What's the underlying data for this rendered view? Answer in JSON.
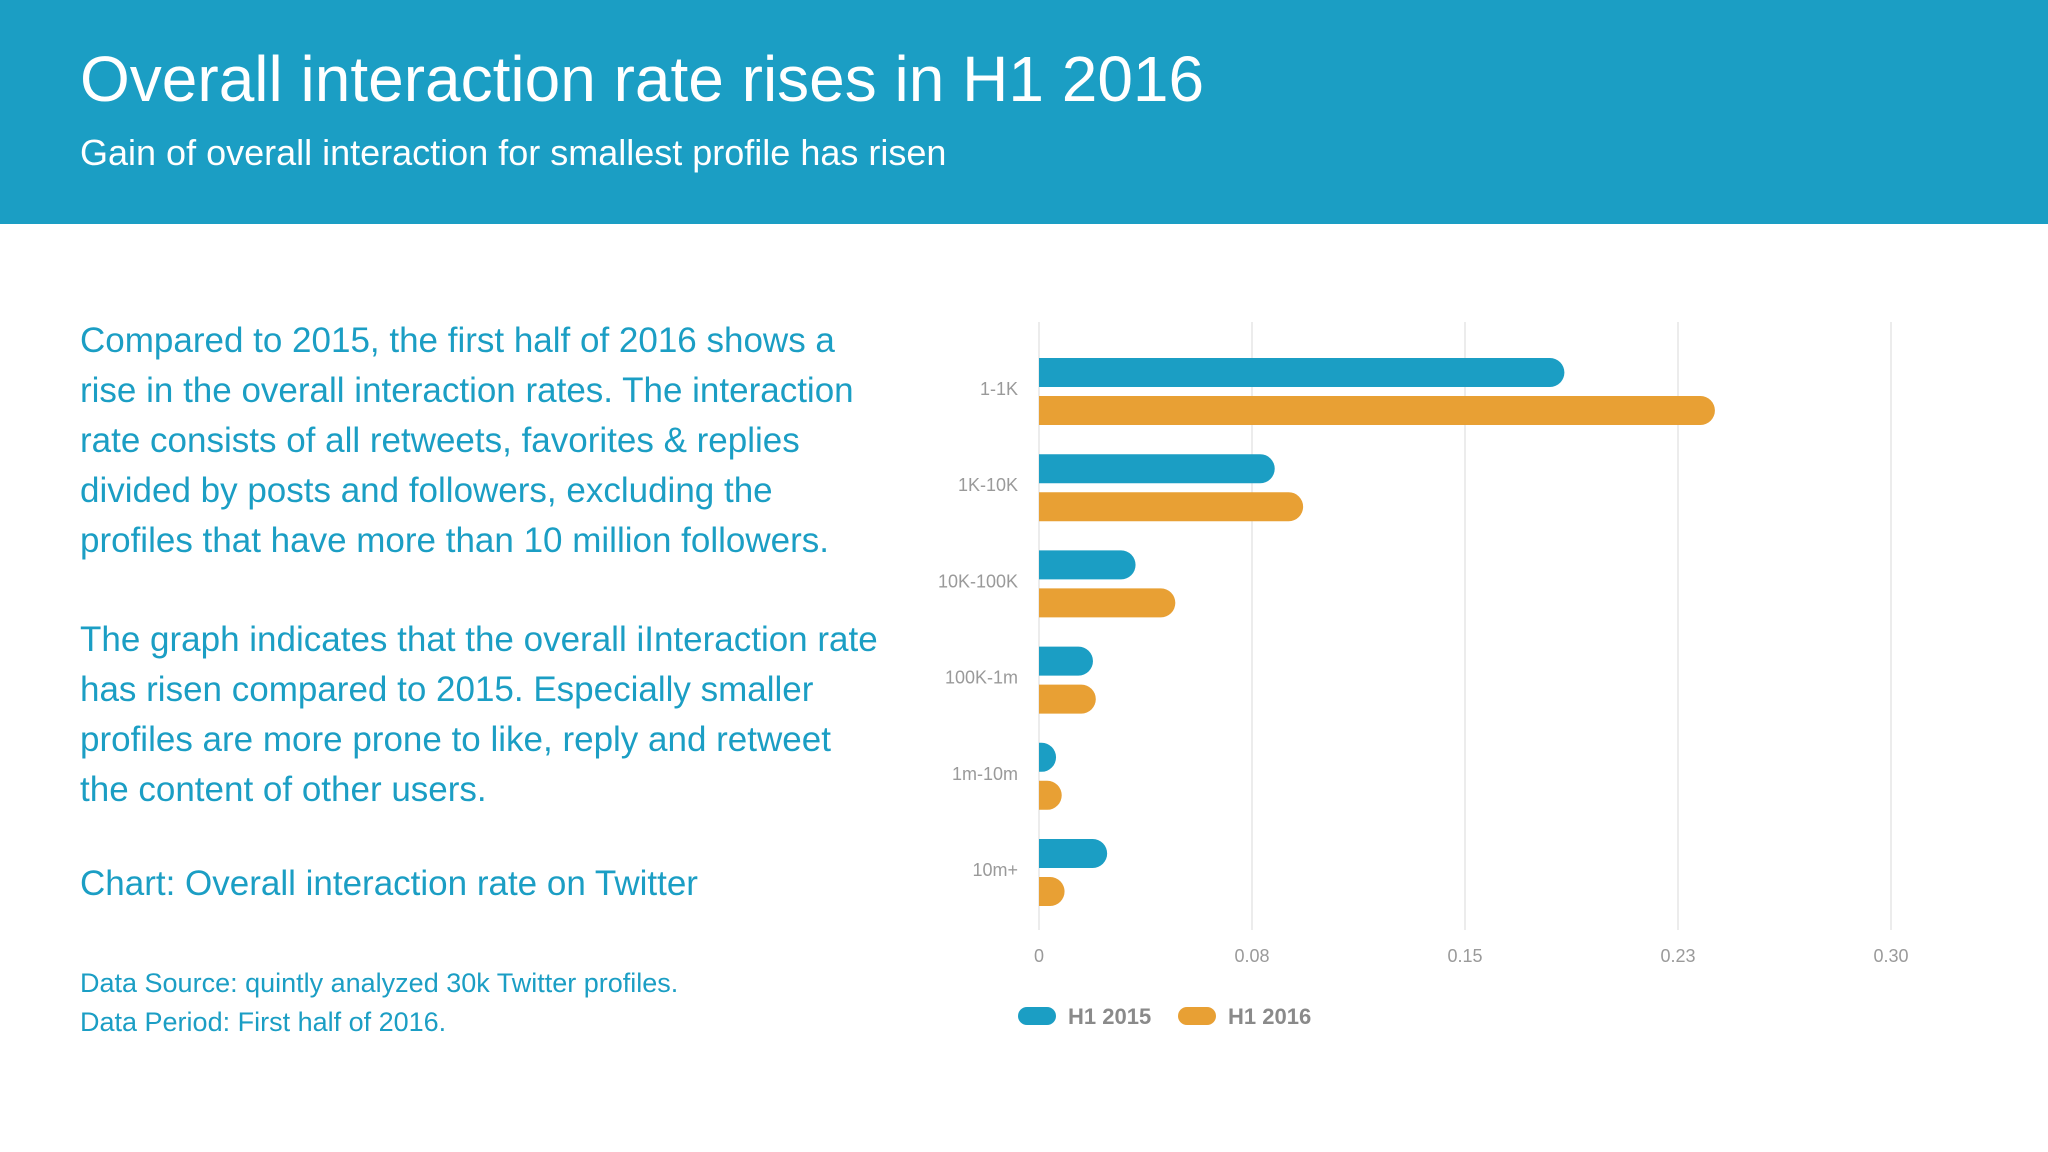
{
  "header": {
    "title": "Overall interaction rate rises in H1 2016",
    "subtitle": "Gain of overall interaction for smallest profile has risen"
  },
  "text": {
    "paragraph1": "Compared to 2015, the first half of 2016 shows a rise in the overall interaction rates. The interaction rate consists of all retweets, favorites & replies divided by posts and followers, excluding the profiles that have more than 10 million followers.",
    "paragraph2": "The graph indicates that the overall iInteraction rate has risen compared to 2015. Especially smaller profiles are more prone to like, reply and retweet the content of other users.",
    "chart_caption": "Chart: Overall interaction rate on Twitter",
    "data_source": "Data Source: quintly analyzed 30k Twitter profiles.",
    "data_period": "Data Period: First half of 2016."
  },
  "colors": {
    "header_bg": "#1b9ec4",
    "series_2015": "#1b9ec4",
    "series_2016": "#e8a034",
    "gridline": "#e6e6e6"
  },
  "chart_data": {
    "type": "bar",
    "orientation": "horizontal",
    "categories": [
      "1-1K",
      "1K-10K",
      "10K-100K",
      "100K-1m",
      "1m-10m",
      "10m+"
    ],
    "series": [
      {
        "name": "H1 2015",
        "values": [
          0.185,
          0.083,
          0.034,
          0.019,
          0.006,
          0.024
        ]
      },
      {
        "name": "H1 2016",
        "values": [
          0.238,
          0.093,
          0.048,
          0.02,
          0.008,
          0.009
        ]
      }
    ],
    "xlim": [
      0,
      0.3
    ],
    "ticks": [
      0,
      0.075,
      0.15,
      0.225,
      0.3
    ],
    "tick_labels": [
      "0",
      "0.08",
      "0.15",
      "0.23",
      "0.30"
    ],
    "grid": true,
    "legend_position": "bottom"
  }
}
